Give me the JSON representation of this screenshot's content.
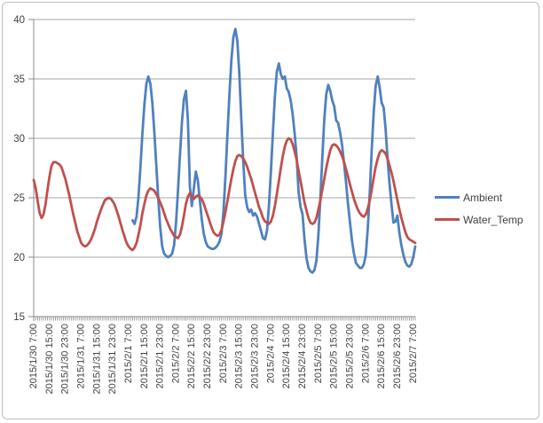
{
  "chart_data": {
    "type": "line",
    "title": "",
    "xlabel": "",
    "ylabel": "",
    "ylim": [
      15,
      40
    ],
    "yticks": [
      15,
      20,
      25,
      30,
      35,
      40
    ],
    "grid": "horizontal",
    "legend_position": "right",
    "x_start": "2015/1/30 7:00",
    "x_interval": "1 hour",
    "tick_every": 8,
    "tick_labels": [
      "2015/1/30 7:00",
      "2015/1/30 15:00",
      "2015/1/30 23:00",
      "2015/1/31 7:00",
      "2015/1/31 15:00",
      "2015/1/31 23:00",
      "2015/2/1 7:00",
      "2015/2/1 15:00",
      "2015/2/1 23:00",
      "2015/2/2 7:00",
      "2015/2/2 15:00",
      "2015/2/2 23:00",
      "2015/2/3 7:00",
      "2015/2/3 15:00",
      "2015/2/3 23:00",
      "2015/2/4 7:00",
      "2015/2/4 15:00",
      "2015/2/4 23:00",
      "2015/2/5 7:00",
      "2015/2/5 15:00",
      "2015/2/5 23:00",
      "2015/2/6 7:00",
      "2015/2/6 15:00",
      "2015/2/6 23:00",
      "2015/2/7 7:00"
    ],
    "colors": {
      "grid": "#a6a6a6",
      "axis": "#8c8c8c",
      "tick_text": "#3f3f3f"
    },
    "series": [
      {
        "name": "Ambient",
        "color": "#4F81BD",
        "values": [
          null,
          null,
          null,
          null,
          null,
          null,
          null,
          null,
          null,
          null,
          null,
          null,
          null,
          null,
          null,
          null,
          null,
          null,
          null,
          null,
          null,
          null,
          null,
          null,
          null,
          null,
          null,
          null,
          null,
          null,
          null,
          null,
          null,
          null,
          null,
          null,
          null,
          null,
          null,
          null,
          null,
          null,
          null,
          null,
          null,
          null,
          null,
          null,
          null,
          null,
          23.1,
          22.8,
          23.4,
          25.1,
          27.6,
          30.4,
          32.9,
          34.6,
          35.2,
          34.6,
          33.0,
          30.6,
          27.8,
          24.9,
          22.5,
          20.9,
          20.3,
          20.1,
          20.0,
          20.1,
          20.3,
          21.0,
          22.9,
          25.6,
          28.7,
          31.4,
          33.3,
          34.0,
          31.5,
          26.0,
          24.3,
          25.8,
          27.2,
          26.5,
          24.8,
          23.2,
          22.0,
          21.3,
          20.9,
          20.8,
          20.7,
          20.7,
          20.8,
          21.0,
          21.3,
          22.0,
          23.9,
          26.8,
          30.3,
          33.7,
          36.6,
          38.5,
          39.2,
          38.2,
          35.5,
          31.7,
          28.0,
          25.2,
          24.2,
          23.8,
          24.0,
          23.5,
          23.7,
          23.4,
          22.8,
          22.2,
          21.6,
          21.5,
          22.2,
          24.3,
          27.3,
          30.5,
          33.5,
          35.6,
          36.3,
          35.4,
          35.0,
          35.2,
          34.2,
          33.9,
          33.2,
          32.0,
          30.4,
          28.5,
          25.5,
          24.2,
          23.6,
          21.5,
          19.9,
          19.1,
          18.8,
          18.7,
          18.9,
          19.7,
          21.8,
          25.0,
          28.4,
          31.6,
          33.7,
          34.5,
          34.0,
          33.2,
          32.7,
          31.5,
          31.3,
          30.5,
          29.4,
          27.9,
          26.3,
          24.5,
          22.9,
          21.4,
          20.3,
          19.5,
          19.3,
          19.1,
          19.1,
          19.4,
          20.2,
          22.4,
          25.5,
          29.1,
          32.2,
          34.4,
          35.2,
          34.3,
          33.0,
          32.6,
          30.8,
          28.3,
          26.2,
          24.4,
          22.9,
          23.0,
          23.5,
          22.0,
          21.0,
          20.2,
          19.6,
          19.3,
          19.2,
          19.4,
          20.0,
          20.9
        ]
      },
      {
        "name": "Water_Temp",
        "color": "#C0504D",
        "values": [
          26.5,
          25.8,
          24.7,
          23.7,
          23.3,
          23.6,
          24.5,
          25.7,
          26.8,
          27.7,
          28.0,
          28.0,
          27.9,
          27.8,
          27.6,
          27.1,
          26.6,
          25.9,
          25.2,
          24.4,
          23.6,
          22.9,
          22.2,
          21.7,
          21.2,
          21.0,
          20.9,
          21.0,
          21.2,
          21.5,
          21.9,
          22.4,
          23.0,
          23.5,
          24.0,
          24.4,
          24.8,
          24.9,
          25.0,
          24.9,
          24.7,
          24.4,
          23.9,
          23.4,
          22.8,
          22.2,
          21.7,
          21.2,
          20.9,
          20.7,
          20.6,
          20.8,
          21.2,
          21.9,
          22.7,
          23.7,
          24.5,
          25.2,
          25.6,
          25.8,
          25.7,
          25.6,
          25.3,
          25.0,
          24.6,
          24.2,
          23.7,
          23.2,
          22.8,
          22.4,
          22.1,
          21.8,
          21.7,
          21.6,
          21.9,
          22.6,
          23.5,
          24.5,
          25.1,
          25.4,
          25.1,
          24.9,
          25.1,
          25.2,
          25.1,
          24.9,
          24.5,
          24.0,
          23.5,
          23.0,
          22.5,
          22.1,
          21.9,
          21.8,
          21.9,
          22.3,
          23.0,
          23.8,
          24.7,
          25.7,
          26.6,
          27.4,
          28.1,
          28.5,
          28.6,
          28.5,
          28.3,
          28.0,
          27.6,
          27.1,
          26.6,
          26.0,
          25.4,
          24.8,
          24.2,
          23.8,
          23.3,
          23.0,
          22.9,
          22.8,
          23.0,
          23.5,
          24.3,
          25.3,
          26.4,
          27.5,
          28.5,
          29.3,
          29.8,
          30.0,
          29.9,
          29.5,
          28.9,
          28.2,
          27.3,
          26.4,
          25.5,
          24.6,
          23.9,
          23.3,
          22.9,
          22.8,
          22.9,
          23.3,
          24.0,
          24.8,
          25.7,
          26.6,
          27.5,
          28.3,
          29.0,
          29.4,
          29.5,
          29.4,
          29.2,
          28.9,
          28.5,
          28.0,
          27.4,
          26.8,
          26.1,
          25.5,
          24.9,
          24.4,
          24.0,
          23.7,
          23.5,
          23.4,
          23.6,
          24.1,
          24.8,
          25.7,
          26.7,
          27.6,
          28.3,
          28.8,
          29.0,
          28.9,
          28.7,
          28.3,
          27.7,
          27.1,
          26.4,
          25.6,
          24.8,
          24.0,
          23.3,
          22.7,
          22.1,
          21.7,
          21.5,
          21.4,
          21.3,
          21.2
        ]
      }
    ]
  }
}
